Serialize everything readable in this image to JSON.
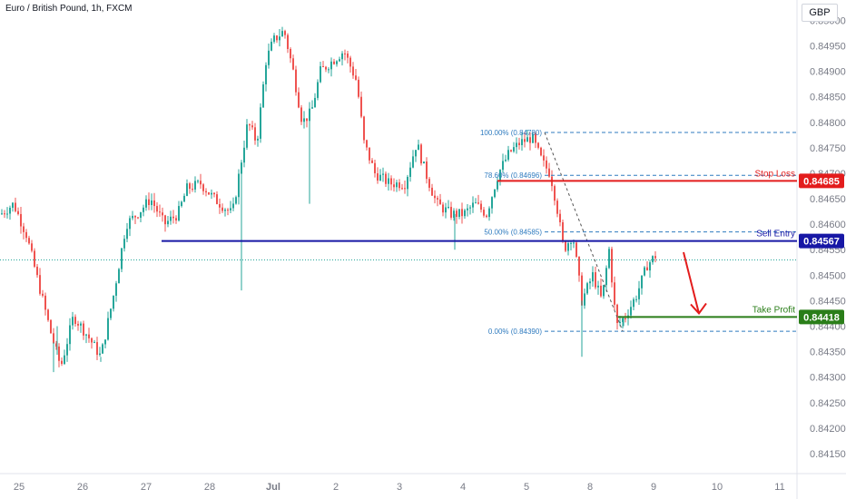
{
  "header": {
    "title": "Euro / British Pound, 1h, FXCM",
    "currency": "GBP"
  },
  "chart_data": {
    "type": "candlestick",
    "symbol": "Euro / British Pound, 1h, FXCM",
    "ylim": [
      0.84125,
      0.85015
    ],
    "y_ticks": [
      "0.85000",
      "0.84950",
      "0.84900",
      "0.84850",
      "0.84800",
      "0.84750",
      "0.84700",
      "0.84650",
      "0.84600",
      "0.84550",
      "0.84500",
      "0.84450",
      "0.84400",
      "0.84350",
      "0.84300",
      "0.84250",
      "0.84200",
      "0.84150"
    ],
    "x_ticks": [
      "25",
      "26",
      "27",
      "28",
      "Jul",
      "2",
      "3",
      "4",
      "5",
      "8",
      "9",
      "10",
      "11"
    ],
    "price_path": [
      [
        0,
        0.8462
      ],
      [
        14,
        0.8464
      ],
      [
        28,
        0.8458
      ],
      [
        42,
        0.8448
      ],
      [
        56,
        0.8438
      ],
      [
        66,
        0.8432
      ],
      [
        80,
        0.8442
      ],
      [
        96,
        0.8438
      ],
      [
        110,
        0.8434
      ],
      [
        124,
        0.8446
      ],
      [
        138,
        0.846
      ],
      [
        150,
        0.8462
      ],
      [
        165,
        0.8465
      ],
      [
        180,
        0.846
      ],
      [
        195,
        0.8462
      ],
      [
        205,
        0.8467
      ],
      [
        220,
        0.8468
      ],
      [
        235,
        0.8465
      ],
      [
        255,
        0.8462
      ],
      [
        272,
        0.848
      ],
      [
        282,
        0.8476
      ],
      [
        292,
        0.8492
      ],
      [
        300,
        0.8496
      ],
      [
        312,
        0.8498
      ],
      [
        322,
        0.849
      ],
      [
        332,
        0.848
      ],
      [
        342,
        0.8482
      ],
      [
        352,
        0.849
      ],
      [
        365,
        0.8492
      ],
      [
        378,
        0.8494
      ],
      [
        392,
        0.8488
      ],
      [
        400,
        0.8476
      ],
      [
        412,
        0.847
      ],
      [
        428,
        0.8468
      ],
      [
        445,
        0.8468
      ],
      [
        458,
        0.8476
      ],
      [
        468,
        0.847
      ],
      [
        480,
        0.8464
      ],
      [
        496,
        0.8462
      ],
      [
        510,
        0.8462
      ],
      [
        522,
        0.8464
      ],
      [
        535,
        0.8462
      ],
      [
        548,
        0.847
      ],
      [
        560,
        0.8474
      ],
      [
        572,
        0.8476
      ],
      [
        585,
        0.8477
      ],
      [
        597,
        0.8472
      ],
      [
        605,
        0.847
      ],
      [
        612,
        0.8464
      ],
      [
        620,
        0.8455
      ],
      [
        630,
        0.8458
      ],
      [
        640,
        0.8445
      ],
      [
        652,
        0.845
      ],
      [
        662,
        0.8445
      ],
      [
        670,
        0.8455
      ],
      [
        678,
        0.844
      ],
      [
        688,
        0.8442
      ],
      [
        700,
        0.8446
      ],
      [
        712,
        0.8452
      ],
      [
        722,
        0.8454
      ]
    ],
    "wicks": [
      [
        58,
        0.8431
      ],
      [
        62,
        0.844
      ],
      [
        110,
        0.8433
      ],
      [
        265,
        0.8447
      ],
      [
        340,
        0.8464
      ],
      [
        500,
        0.8455
      ],
      [
        640,
        0.8434
      ],
      [
        686,
        0.844
      ]
    ],
    "levels": [
      {
        "name": "Stop Loss",
        "value": 0.84685,
        "label": "0.84685",
        "color": "#e31c1c"
      },
      {
        "name": "Sell Entry",
        "value": 0.84567,
        "label": "0.84567",
        "color": "#1717a5"
      },
      {
        "name": "Take Profit",
        "value": 0.84418,
        "label": "0.84418",
        "color": "#2a7e19"
      }
    ],
    "fibonacci": [
      {
        "label": "100.00% (0.84780)",
        "value": 0.8478
      },
      {
        "label": "78.60% (0.84696)",
        "value": 0.84696
      },
      {
        "label": "50.00% (0.84585)",
        "value": 0.84585
      },
      {
        "label": "0.00% (0.84390)",
        "value": 0.8439
      }
    ],
    "last_price": 0.8453,
    "colors": {
      "up": "#26a69a",
      "down": "#ef5350",
      "fib": "#2f7bbf",
      "arrow": "#e31c1c"
    }
  }
}
